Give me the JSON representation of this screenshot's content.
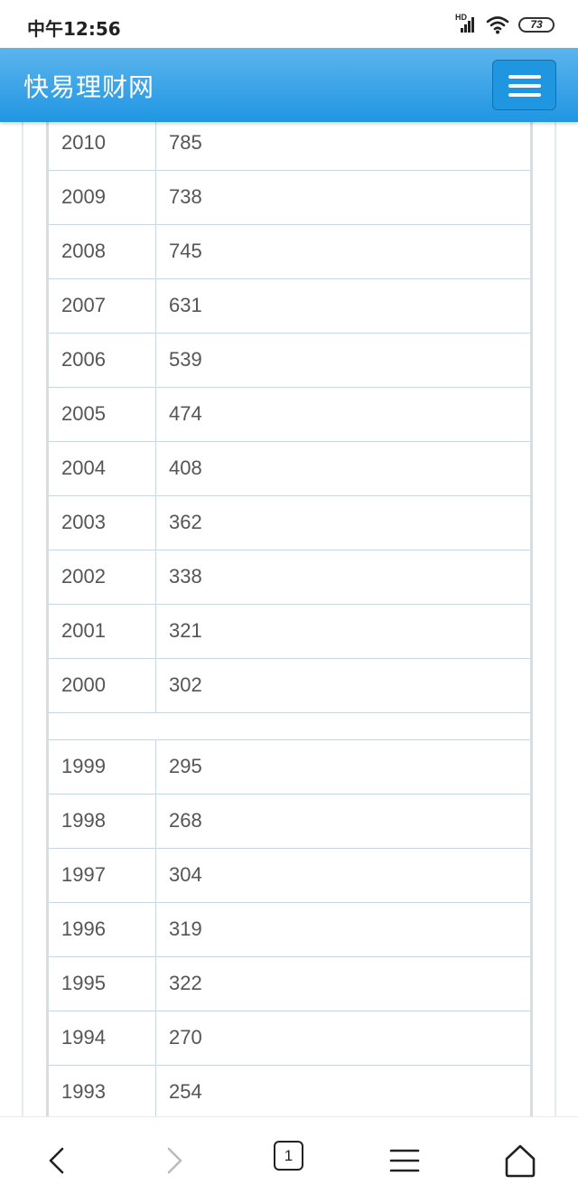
{
  "status_bar": {
    "time": "中午12:56",
    "network_label": "HD",
    "battery": "73"
  },
  "navbar": {
    "brand": "快易理财网",
    "menu_icon": "hamburger-icon"
  },
  "table": {
    "group1": [
      {
        "year": "2010",
        "value": "785"
      },
      {
        "year": "2009",
        "value": "738"
      },
      {
        "year": "2008",
        "value": "745"
      },
      {
        "year": "2007",
        "value": "631"
      },
      {
        "year": "2006",
        "value": "539"
      },
      {
        "year": "2005",
        "value": "474"
      },
      {
        "year": "2004",
        "value": "408"
      },
      {
        "year": "2003",
        "value": "362"
      },
      {
        "year": "2002",
        "value": "338"
      },
      {
        "year": "2001",
        "value": "321"
      },
      {
        "year": "2000",
        "value": "302"
      }
    ],
    "group2": [
      {
        "year": "1999",
        "value": "295"
      },
      {
        "year": "1998",
        "value": "268"
      },
      {
        "year": "1997",
        "value": "304"
      },
      {
        "year": "1996",
        "value": "319"
      },
      {
        "year": "1995",
        "value": "322"
      },
      {
        "year": "1994",
        "value": "270"
      },
      {
        "year": "1993",
        "value": "254"
      }
    ]
  },
  "bottom_nav": {
    "back_icon": "chevron-left-icon",
    "forward_icon": "chevron-right-icon",
    "tab_count": "1",
    "menu_icon": "menu-icon",
    "home_icon": "home-icon"
  }
}
